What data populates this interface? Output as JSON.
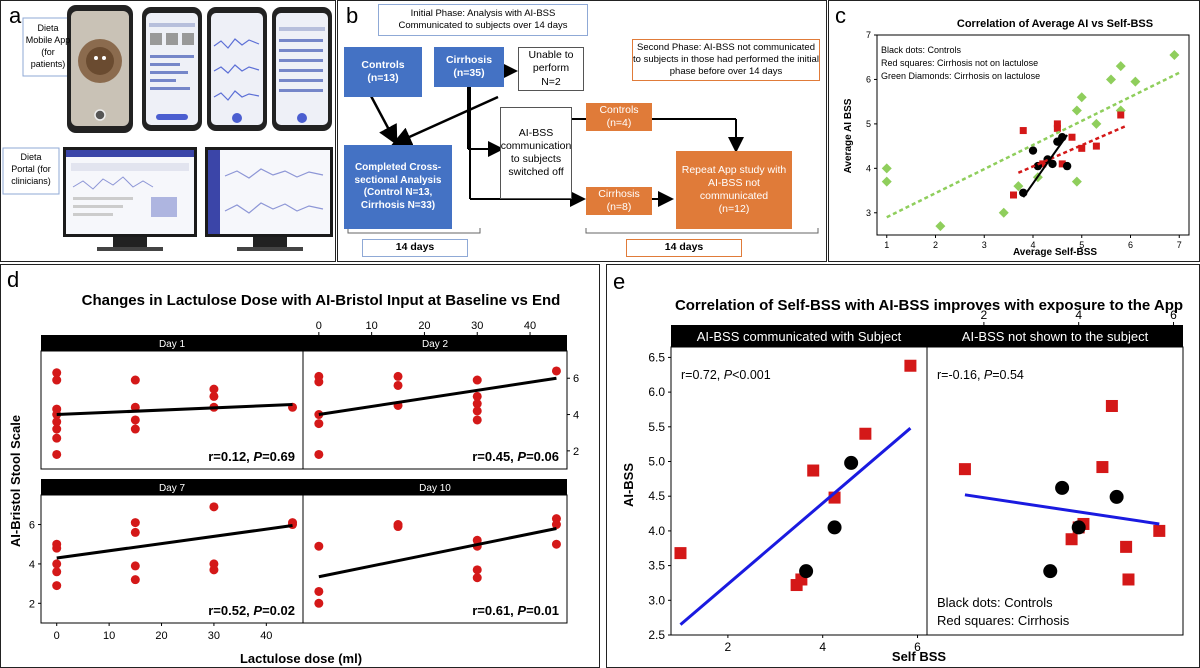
{
  "panel_a": {
    "label": "a",
    "mobile_caption": [
      "Dieta",
      "Mobile App",
      "(for",
      "patients)"
    ],
    "portal_caption": [
      "Dieta",
      "Portal (for",
      "clinicians)"
    ]
  },
  "panel_b": {
    "label": "b",
    "initial_phase": "Initial Phase: Analysis with AI-BSS Communicated to subjects over 14 days",
    "controls": [
      "Controls",
      "(n=13)"
    ],
    "cirrhosis": [
      "Cirrhosis",
      "(n=35)"
    ],
    "unable": [
      "Unable to",
      "perform",
      "N=2"
    ],
    "second_phase": "Second Phase: AI-BSS not communicated to subjects in those had performed the initial phase before over 14 days",
    "completed": [
      "Completed Cross-",
      "sectional Analysis",
      "(Control N=13,",
      "Cirrhosis N=33)"
    ],
    "switched": [
      "AI-BSS",
      "communication",
      "to subjects",
      "switched off"
    ],
    "controls2": [
      "Controls",
      "(n=4)"
    ],
    "cirrhosis2": [
      "Cirrhosis",
      "(n=8)"
    ],
    "repeat": [
      "Repeat App study with",
      "AI-BSS not",
      "communicated",
      "(n=12)"
    ],
    "days_left": "14 days",
    "days_right": "14 days"
  },
  "panel_c": {
    "label": "c",
    "chart_data": {
      "type": "scatter",
      "title": "Correlation of Average AI vs Self-BSS",
      "xlabel": "Average Self-BSS",
      "ylabel": "Average AI BSS",
      "xlim": [
        0.8,
        7.2
      ],
      "ylim": [
        2.5,
        7
      ],
      "xticks": [
        1,
        2,
        3,
        4,
        5,
        6,
        7
      ],
      "yticks": [
        3,
        4,
        5,
        6,
        7
      ],
      "legend": [
        "Black dots: Controls",
        "Red squares: Cirrhosis not on lactulose",
        "Green Diamonds: Cirrhosis on lactulose"
      ],
      "legend_position": "top-left",
      "colors": {
        "controls": "#000000",
        "red": "#d41818",
        "green": "#8fce5c"
      },
      "series": [
        {
          "points": [
            [
              3.8,
              3.45
            ],
            [
              4.0,
              4.4
            ],
            [
              4.1,
              4.05
            ],
            [
              4.3,
              4.2
            ],
            [
              4.4,
              4.1
            ],
            [
              4.5,
              4.6
            ],
            [
              4.6,
              4.7
            ],
            [
              4.7,
              4.05
            ]
          ]
        },
        {
          "points": [
            [
              3.6,
              3.4
            ],
            [
              3.8,
              4.85
            ],
            [
              4.2,
              4.1
            ],
            [
              4.5,
              4.9
            ],
            [
              4.6,
              4.1
            ],
            [
              4.8,
              4.7
            ],
            [
              5.0,
              4.45
            ],
            [
              5.3,
              4.5
            ],
            [
              5.8,
              5.2
            ],
            [
              4.5,
              5.0
            ]
          ]
        },
        {
          "points": [
            [
              1.0,
              3.7
            ],
            [
              1.0,
              4.0
            ],
            [
              2.1,
              2.7
            ],
            [
              3.4,
              3.0
            ],
            [
              3.7,
              3.6
            ],
            [
              4.1,
              3.8
            ],
            [
              4.9,
              3.7
            ],
            [
              4.9,
              5.3
            ],
            [
              5.0,
              5.6
            ],
            [
              5.3,
              5.0
            ],
            [
              5.6,
              6.0
            ],
            [
              5.8,
              6.3
            ],
            [
              5.8,
              5.3
            ],
            [
              6.1,
              5.95
            ],
            [
              6.9,
              6.55
            ]
          ]
        }
      ],
      "fits": [
        {
          "x": [
            1.0,
            7.0
          ],
          "y": [
            2.9,
            6.15
          ],
          "color": "#8fce5c"
        },
        {
          "x": [
            3.7,
            5.9
          ],
          "y": [
            3.9,
            4.95
          ],
          "color": "#d41818"
        },
        {
          "x": [
            3.8,
            4.7
          ],
          "y": [
            3.35,
            4.75
          ],
          "color": "#000000"
        }
      ]
    }
  },
  "panel_d": {
    "label": "d",
    "chart_data": {
      "type": "scatter",
      "title": "Changes in Lactulose Dose with AI-Bristol Input at Baseline vs End",
      "xlabel": "Lactulose dose (ml)",
      "ylabel": "AI-Bristol Stool Scale",
      "xlim": [
        -3,
        47
      ],
      "ylim": [
        1.0,
        7.5
      ],
      "xticks": [
        0,
        10,
        20,
        30,
        40
      ],
      "yticks": [
        2,
        4,
        6
      ],
      "facets": [
        {
          "title": "Day 1",
          "stat": {
            "r": "r=0.12, ",
            "p_italic": "P",
            "p_rest": "=0.69"
          },
          "points": [
            [
              0,
              1.8
            ],
            [
              0,
              2.7
            ],
            [
              0,
              3.2
            ],
            [
              0,
              3.6
            ],
            [
              0,
              4.0
            ],
            [
              0,
              4.3
            ],
            [
              0,
              5.9
            ],
            [
              0,
              6.3
            ],
            [
              15,
              3.2
            ],
            [
              15,
              3.7
            ],
            [
              15,
              4.4
            ],
            [
              15,
              5.9
            ],
            [
              30,
              4.4
            ],
            [
              30,
              5.0
            ],
            [
              30,
              5.4
            ],
            [
              45,
              4.4
            ]
          ],
          "fit": [
            [
              0,
              4.0
            ],
            [
              45,
              4.55
            ]
          ]
        },
        {
          "title": "Day 2",
          "stat": {
            "r": "r=0.45, ",
            "p_italic": "P",
            "p_rest": "=0.06"
          },
          "points": [
            [
              0,
              1.8
            ],
            [
              0,
              3.5
            ],
            [
              0,
              4.0
            ],
            [
              0,
              5.8
            ],
            [
              0,
              6.1
            ],
            [
              15,
              4.5
            ],
            [
              15,
              5.6
            ],
            [
              15,
              6.1
            ],
            [
              30,
              3.7
            ],
            [
              30,
              4.2
            ],
            [
              30,
              4.6
            ],
            [
              30,
              5.0
            ],
            [
              30,
              5.9
            ],
            [
              45,
              6.4
            ]
          ],
          "fit": [
            [
              0,
              4.0
            ],
            [
              45,
              6.0
            ]
          ]
        },
        {
          "title": "Day 7",
          "stat": {
            "r": "r=0.52, ",
            "p_italic": "P",
            "p_rest": "=0.02"
          },
          "points": [
            [
              0,
              2.9
            ],
            [
              0,
              3.6
            ],
            [
              0,
              4.0
            ],
            [
              0,
              4.8
            ],
            [
              0,
              5.0
            ],
            [
              15,
              3.2
            ],
            [
              15,
              3.9
            ],
            [
              15,
              5.6
            ],
            [
              15,
              6.1
            ],
            [
              30,
              3.7
            ],
            [
              30,
              4.0
            ],
            [
              30,
              6.9
            ],
            [
              45,
              6.0
            ],
            [
              45,
              6.1
            ]
          ],
          "fit": [
            [
              0,
              4.3
            ],
            [
              45,
              5.95
            ]
          ]
        },
        {
          "title": "Day 10",
          "stat": {
            "r": "r=0.61, ",
            "p_italic": "P",
            "p_rest": "=0.01"
          },
          "points": [
            [
              0,
              2.0
            ],
            [
              0,
              2.6
            ],
            [
              0,
              4.9
            ],
            [
              15,
              5.9
            ],
            [
              15,
              6.0
            ],
            [
              30,
              3.3
            ],
            [
              30,
              3.7
            ],
            [
              30,
              4.9
            ],
            [
              30,
              5.2
            ],
            [
              45,
              5.0
            ],
            [
              45,
              6.0
            ],
            [
              45,
              6.3
            ]
          ],
          "fit": [
            [
              0,
              3.35
            ],
            [
              45,
              5.8
            ]
          ]
        }
      ]
    }
  },
  "panel_e": {
    "label": "e",
    "chart_data": {
      "type": "scatter",
      "title": "Correlation of Self-BSS with AI-BSS improves with exposure to the App",
      "xlabel": "Self BSS",
      "ylabel": "AI-BSS",
      "xlim": [
        0.8,
        6.2
      ],
      "ylim": [
        2.5,
        6.65
      ],
      "xticks": [
        2,
        4,
        6
      ],
      "yticks": [
        2.5,
        3.0,
        3.5,
        4.0,
        4.5,
        5.0,
        5.5,
        6.0,
        6.5
      ],
      "legend": [
        "Black dots: Controls",
        "Red squares: Cirrhosis"
      ],
      "legend_position": "bottom-right",
      "facets": [
        {
          "title": "AI-BSS communicated with Subject",
          "stat": {
            "r": "r=0.72, ",
            "p_italic": "P",
            "p_rest": "<0.001"
          },
          "controls": [
            [
              3.65,
              3.42
            ],
            [
              4.25,
              4.05
            ],
            [
              4.6,
              4.98
            ]
          ],
          "cirrhosis": [
            [
              1.0,
              3.68
            ],
            [
              3.45,
              3.22
            ],
            [
              3.55,
              3.3
            ],
            [
              3.8,
              4.87
            ],
            [
              4.25,
              4.48
            ],
            [
              4.9,
              5.4
            ],
            [
              5.85,
              6.38
            ]
          ],
          "fit": [
            [
              1.0,
              2.65
            ],
            [
              5.85,
              5.48
            ]
          ]
        },
        {
          "title": "AI-BSS not shown to the subject",
          "stat": {
            "r": "r=-0.16, ",
            "p_italic": "P",
            "p_rest": "=0.54"
          },
          "controls": [
            [
              3.4,
              3.42
            ],
            [
              3.65,
              4.62
            ],
            [
              4.0,
              4.05
            ],
            [
              4.8,
              4.49
            ]
          ],
          "cirrhosis": [
            [
              1.6,
              4.89
            ],
            [
              3.85,
              3.88
            ],
            [
              4.0,
              4.05
            ],
            [
              4.1,
              4.1
            ],
            [
              4.5,
              4.92
            ],
            [
              4.7,
              5.8
            ],
            [
              5.0,
              3.77
            ],
            [
              5.05,
              3.3
            ],
            [
              5.7,
              4.0
            ]
          ],
          "fit": [
            [
              1.6,
              4.52
            ],
            [
              5.7,
              4.1
            ]
          ]
        }
      ]
    }
  }
}
